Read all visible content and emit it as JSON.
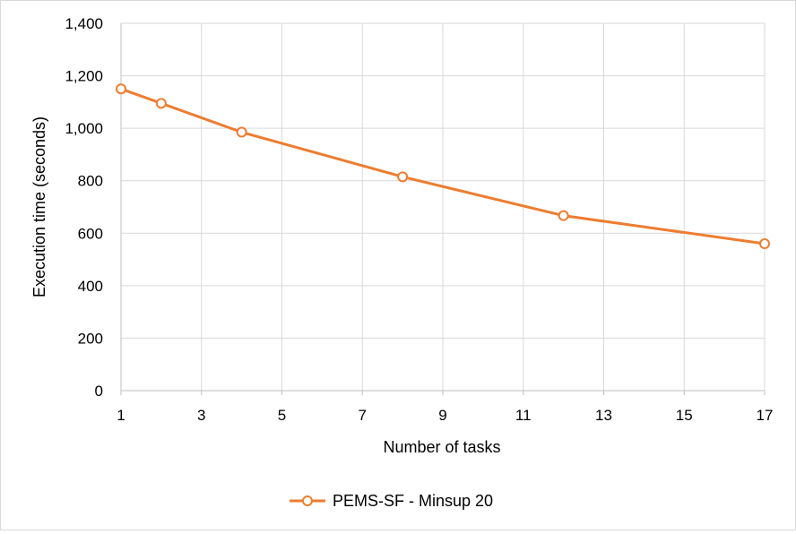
{
  "chart_data": {
    "type": "line",
    "title": "",
    "xlabel": "Number of tasks",
    "ylabel": "Execution time (seconds)",
    "xlim": [
      1,
      17
    ],
    "ylim": [
      0,
      1400
    ],
    "x_ticks": [
      1,
      3,
      5,
      7,
      9,
      11,
      13,
      15,
      17
    ],
    "y_ticks": [
      0,
      200,
      400,
      600,
      800,
      1000,
      1200,
      1400
    ],
    "x_tick_labels": [
      "1",
      "3",
      "5",
      "7",
      "9",
      "11",
      "13",
      "15",
      "17"
    ],
    "y_tick_labels": [
      "0",
      "200",
      "400",
      "600",
      "800",
      "1,000",
      "1,200",
      "1,400"
    ],
    "grid": true,
    "legend_position": "bottom",
    "series": [
      {
        "name": "PEMS-SF - Minsup 20",
        "color": "#ED7D31",
        "marker": "hollow-circle",
        "x": [
          1,
          2,
          4,
          8,
          12,
          17
        ],
        "values": [
          1150,
          1095,
          985,
          815,
          667,
          560
        ]
      }
    ]
  }
}
